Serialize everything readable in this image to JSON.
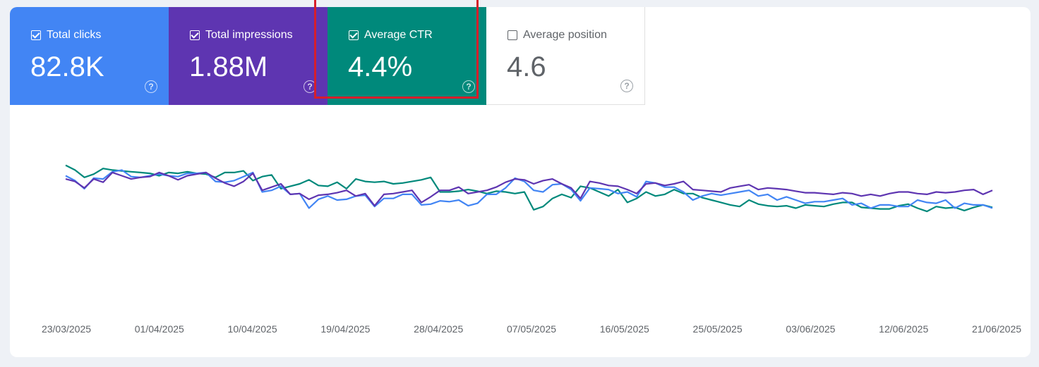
{
  "cards": [
    {
      "label": "Total clicks",
      "value": "82.8K",
      "checked": true,
      "color": "#4285f4",
      "help": "?"
    },
    {
      "label": "Total impressions",
      "value": "1.88M",
      "checked": true,
      "color": "#5e35b1",
      "help": "?"
    },
    {
      "label": "Average CTR",
      "value": "4.4%",
      "checked": true,
      "color": "#00897b",
      "help": "?"
    },
    {
      "label": "Average position",
      "value": "4.6",
      "checked": false,
      "color": "#ffffff",
      "help": "?"
    }
  ],
  "highlight_color": "#d71e2b",
  "chart_data": {
    "type": "line",
    "title": "",
    "xlabel": "",
    "ylabel": "",
    "grid": false,
    "x_tick_labels": [
      "23/03/2025",
      "01/04/2025",
      "10/04/2025",
      "19/04/2025",
      "28/04/2025",
      "07/05/2025",
      "16/05/2025",
      "25/05/2025",
      "03/06/2025",
      "12/06/2025",
      "21/06/2025"
    ],
    "y_scale": "relative (no axis shown)",
    "series": [
      {
        "name": "Average CTR",
        "color": "#00897b",
        "values": [
          83,
          77,
          68,
          72,
          79,
          77,
          76,
          75,
          74,
          73,
          70,
          74,
          73,
          75,
          73,
          72,
          68,
          74,
          74,
          76,
          64,
          69,
          71,
          54,
          57,
          60,
          65,
          58,
          57,
          62,
          54,
          66,
          63,
          62,
          63,
          60,
          61,
          63,
          65,
          68,
          50,
          50,
          51,
          53,
          51,
          48,
          51,
          50,
          48,
          50,
          28,
          32,
          42,
          47,
          43,
          57,
          55,
          50,
          45,
          53,
          37,
          42,
          50,
          45,
          47,
          53,
          48,
          48,
          43,
          40,
          37,
          34,
          32,
          40,
          35,
          33,
          32,
          33,
          30,
          34,
          33,
          32,
          35,
          37,
          37,
          31,
          30,
          29,
          29,
          33,
          35,
          30,
          26,
          32,
          30,
          31,
          27,
          31,
          34,
          31
        ]
      },
      {
        "name": "Total clicks",
        "color": "#4285f4",
        "values": [
          70,
          64,
          54,
          67,
          66,
          75,
          77,
          69,
          68,
          70,
          72,
          70,
          69,
          73,
          73,
          74,
          63,
          62,
          64,
          69,
          74,
          50,
          52,
          57,
          47,
          48,
          30,
          41,
          45,
          40,
          41,
          45,
          46,
          32,
          42,
          42,
          47,
          47,
          34,
          35,
          39,
          38,
          40,
          33,
          36,
          47,
          47,
          55,
          67,
          63,
          52,
          50,
          59,
          60,
          53,
          39,
          55,
          54,
          53,
          48,
          50,
          44,
          63,
          61,
          56,
          56,
          50,
          40,
          45,
          48,
          46,
          48,
          50,
          52,
          45,
          47,
          40,
          44,
          40,
          36,
          38,
          38,
          40,
          42,
          34,
          36,
          30,
          34,
          34,
          32,
          32,
          40,
          37,
          36,
          40,
          30,
          36,
          34,
          34,
          30
        ]
      },
      {
        "name": "Total impressions",
        "color": "#5e35b1",
        "values": [
          66,
          63,
          55,
          66,
          62,
          74,
          70,
          66,
          68,
          69,
          74,
          70,
          65,
          70,
          72,
          74,
          67,
          61,
          57,
          63,
          73,
          52,
          56,
          60,
          47,
          48,
          41,
          46,
          47,
          49,
          52,
          45,
          48,
          33,
          47,
          48,
          50,
          52,
          37,
          44,
          52,
          52,
          56,
          48,
          50,
          52,
          56,
          62,
          66,
          65,
          60,
          64,
          66,
          60,
          55,
          42,
          63,
          61,
          58,
          57,
          53,
          48,
          60,
          61,
          58,
          60,
          63,
          53,
          52,
          51,
          50,
          55,
          57,
          59,
          53,
          55,
          54,
          53,
          51,
          49,
          49,
          48,
          47,
          49,
          48,
          45,
          47,
          45,
          48,
          50,
          50,
          48,
          47,
          50,
          49,
          50,
          52,
          53,
          47,
          52
        ]
      }
    ]
  }
}
